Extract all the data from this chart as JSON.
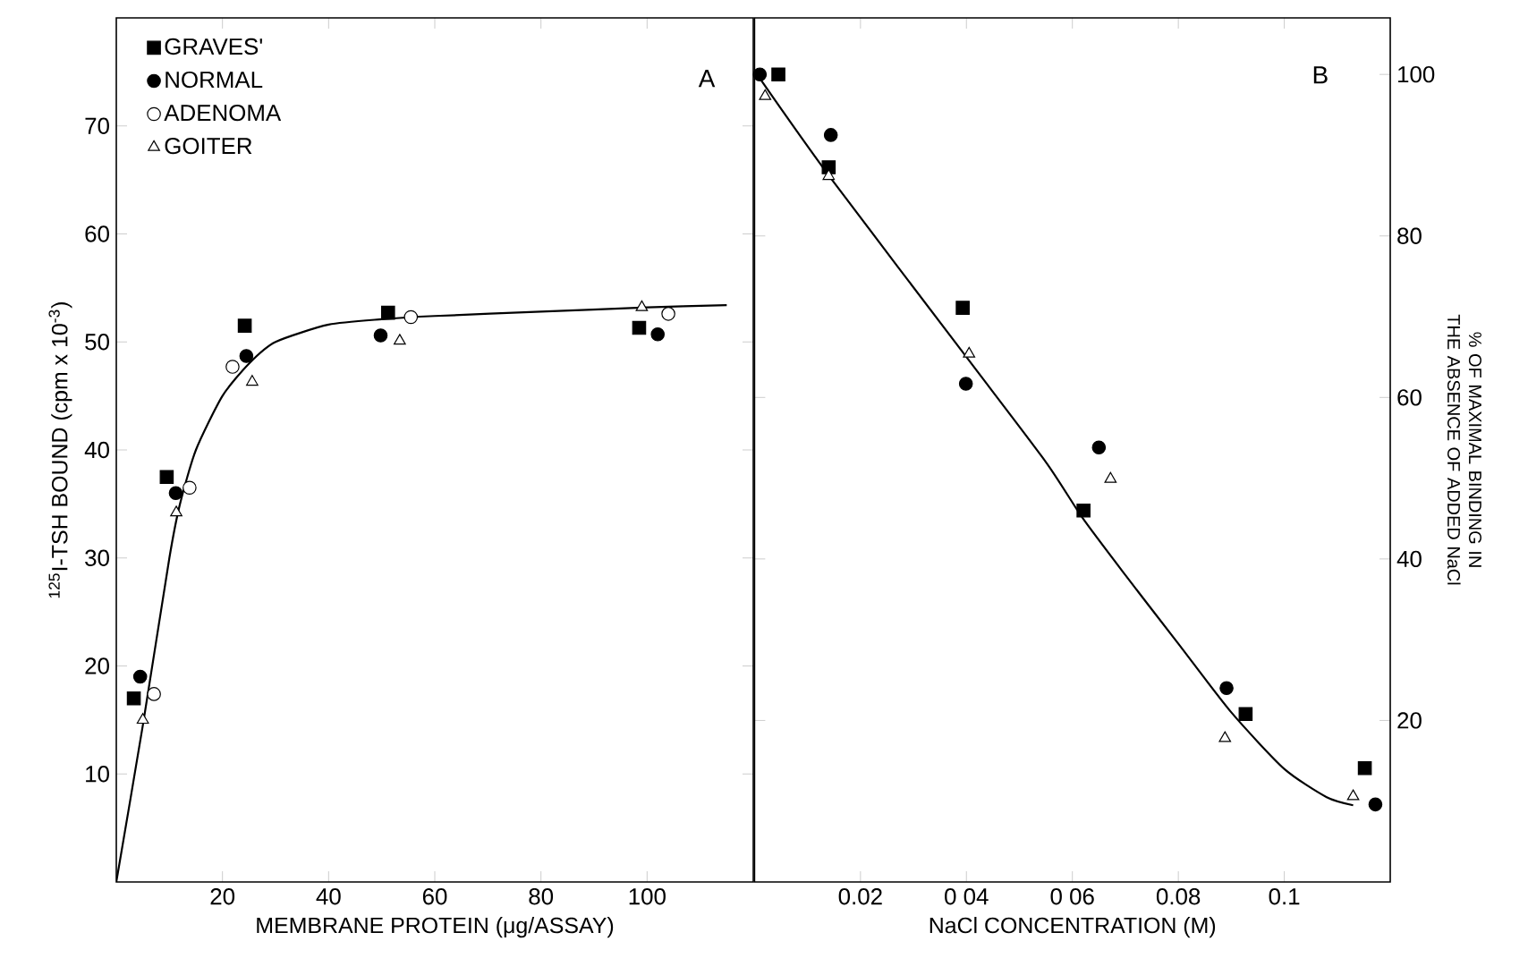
{
  "chart_data": [
    {
      "type": "scatter",
      "xlabel": "MEMBRANE PROTEIN (μg/ASSAY)",
      "ylabel": "$^{125}$I-TSH BOUND (cpm x 10$^{-3}$)",
      "xlim": [
        0,
        120
      ],
      "ylim": [
        0,
        80
      ],
      "xticks": [
        20,
        40,
        60,
        80,
        100
      ],
      "yticks": [
        10,
        20,
        30,
        40,
        50,
        60,
        70
      ],
      "legend": "top left",
      "annotations": [
        "A"
      ],
      "series": [
        {
          "name": "GRAVES'",
          "color": "#000000",
          "marker": "square",
          "x": [
            3.3,
            9.5,
            24.2,
            51.2,
            98.5
          ],
          "values": [
            17,
            37.5,
            51.5,
            52.7,
            51.3
          ]
        },
        {
          "name": "NORMAL",
          "color": "#000000",
          "marker": "circle",
          "x": [
            4.5,
            11.2,
            24.5,
            49.8,
            102
          ],
          "values": [
            19,
            36,
            48.7,
            50.6,
            50.7
          ]
        },
        {
          "name": "ADENOMA",
          "color": "#ffffff",
          "marker": "circle",
          "x": [
            7.1,
            13.8,
            21.9,
            55.5,
            104
          ],
          "values": [
            17.4,
            36.5,
            47.7,
            52.3,
            52.6
          ]
        },
        {
          "name": "GOITER",
          "color": "#ffffff",
          "marker": "triangle",
          "x": [
            5,
            11.3,
            25.6,
            53.4,
            99
          ],
          "values": [
            15,
            34.2,
            46.3,
            50.1,
            53.2
          ]
        },
        {
          "type": "line",
          "color": "#000000",
          "x": [
            0,
            5,
            10,
            12,
            15,
            20,
            25,
            30,
            40,
            50,
            60,
            80,
            100,
            115
          ],
          "values": [
            0,
            14.5,
            30,
            35,
            40,
            45,
            48,
            50,
            51.6,
            52.1,
            52.4,
            52.8,
            53.2,
            53.4
          ]
        }
      ]
    },
    {
      "type": "scatter",
      "xlabel": "NaCl CONCENTRATION (M)",
      "ylabel": "% OF MAXIMAL BINDING IN THE ABSENCE OF ADDED NaCl",
      "xlim": [
        0,
        0.12
      ],
      "ylim": [
        0,
        107
      ],
      "xticks": [
        0.02,
        {
          "value": 0.04,
          "label": "0 04"
        },
        {
          "value": 0.06,
          "label": "0 06"
        },
        0.08,
        0.1
      ],
      "yticks": [
        20,
        40,
        60,
        80,
        100
      ],
      "annotations": [
        "B"
      ],
      "series": [
        {
          "color": "#000000",
          "marker": "square",
          "x": [
            0.0045,
            0.014,
            0.0393,
            0.0621,
            0.0927,
            0.1152
          ],
          "values": [
            100,
            88.5,
            71.1,
            46,
            20.8,
            14.1
          ]
        },
        {
          "color": "#000000",
          "marker": "circle",
          "x": [
            0.001,
            0.0144,
            0.0399,
            0.065,
            0.0891,
            0.1172
          ],
          "values": [
            100,
            92.5,
            61.7,
            53.8,
            24,
            9.6
          ]
        },
        {
          "color": "#ffffff",
          "marker": "triangle",
          "x": [
            0.002,
            0.014,
            0.0405,
            0.0672,
            0.0888,
            0.113
          ],
          "values": [
            97.3,
            87.4,
            65.4,
            49.9,
            17.8,
            10.6
          ]
        },
        {
          "type": "line",
          "color": "#000000",
          "x": [
            0.001,
            0.014,
            0.04,
            0.055,
            0.062,
            0.07,
            0.08,
            0.09,
            0.1,
            0.108,
            0.113
          ],
          "values": [
            99.5,
            87.5,
            65,
            52,
            45,
            38,
            29.5,
            21,
            14,
            10.5,
            9.5
          ]
        }
      ]
    }
  ]
}
